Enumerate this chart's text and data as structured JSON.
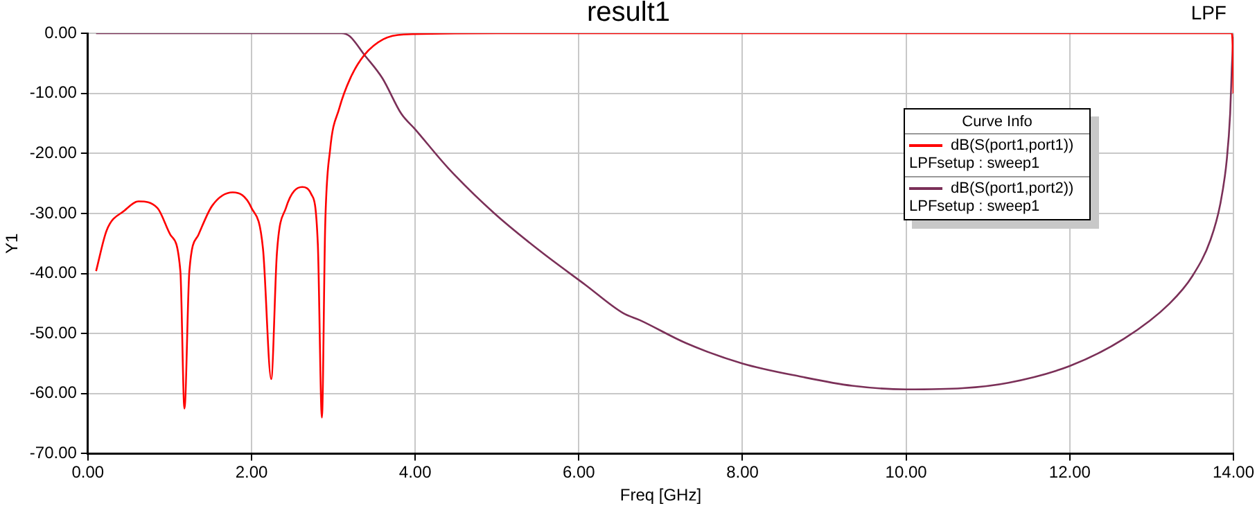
{
  "chart_data": {
    "type": "line",
    "title": "result1",
    "xlabel": "Freq [GHz]",
    "ylabel": "Y1",
    "legend_title": "Curve Info",
    "annotations": [
      "LPF"
    ],
    "xlim": [
      0,
      14
    ],
    "xticks": [
      {
        "value": 0,
        "label": "0.00"
      },
      {
        "value": 2,
        "label": "2.00"
      },
      {
        "value": 4,
        "label": "4.00"
      },
      {
        "value": 6,
        "label": "6.00"
      },
      {
        "value": 8,
        "label": "8.00"
      },
      {
        "value": 10,
        "label": "10.00"
      },
      {
        "value": 12,
        "label": "12.00"
      },
      {
        "value": 14,
        "label": "14.00"
      }
    ],
    "ylim": [
      -70,
      0
    ],
    "yticks": [
      {
        "value": -70,
        "label": "-70.00"
      },
      {
        "value": -60,
        "label": "-60.00"
      },
      {
        "value": -50,
        "label": "-50.00"
      },
      {
        "value": -40,
        "label": "-40.00"
      },
      {
        "value": -30,
        "label": "-30.00"
      },
      {
        "value": -20,
        "label": "-20.00"
      },
      {
        "value": -10,
        "label": "-10.00"
      },
      {
        "value": 0,
        "label": "0.00"
      }
    ],
    "grid": true,
    "legend": "top right",
    "marker": "none",
    "line_style": "solid",
    "series": [
      {
        "name": "dB(S(port1,port1))\nLPFsetup : sweep1",
        "color": "#ff0000",
        "x": [
          0.1,
          0.23,
          0.45,
          0.62,
          0.85,
          1.01,
          1.13,
          1.18,
          1.24,
          1.35,
          1.52,
          1.77,
          2.0,
          2.14,
          2.24,
          2.31,
          2.42,
          2.62,
          2.73,
          2.81,
          2.86,
          2.9,
          2.96,
          3.07,
          3.21,
          3.38,
          3.61,
          3.86,
          5.0,
          8.0,
          11.0,
          13.98,
          13.99,
          14.0
        ],
        "values": [
          -39.6,
          -32.8,
          -29.5,
          -28,
          -29.1,
          -33.6,
          -39.6,
          -62.5,
          -39.6,
          -33.6,
          -28.7,
          -26.5,
          -29.1,
          -35.9,
          -57.6,
          -36.6,
          -29.1,
          -25.6,
          -26.8,
          -35.1,
          -64,
          -32.1,
          -19.4,
          -12.6,
          -7.4,
          -3.6,
          -1,
          -0.2,
          0,
          0,
          0,
          0,
          -2,
          -10
        ]
      },
      {
        "name": "dB(S(port1,port2))\nLPFsetup : sweep1",
        "color": "#7b3058",
        "x": [
          0.1,
          1.0,
          2.0,
          3.1,
          3.2,
          3.38,
          3.6,
          3.83,
          4.0,
          4.4,
          4.96,
          5.52,
          6.08,
          6.54,
          6.75,
          7.31,
          8.0,
          8.72,
          9.34,
          10.0,
          10.69,
          11.25,
          12.0,
          12.66,
          13.22,
          13.5,
          13.72,
          13.84,
          13.92,
          13.96,
          13.98,
          14.0
        ],
        "values": [
          0,
          0,
          0,
          0,
          -0.5,
          -3.6,
          -7.5,
          -13.4,
          -16,
          -22.4,
          -29.9,
          -36.2,
          -41.9,
          -46.6,
          -47.8,
          -51.6,
          -55,
          -57.2,
          -58.7,
          -59.3,
          -59.1,
          -58.2,
          -55.4,
          -50.9,
          -45,
          -40.4,
          -34.4,
          -28.4,
          -20.9,
          -13.4,
          -5.9,
          -0.6
        ]
      }
    ]
  }
}
